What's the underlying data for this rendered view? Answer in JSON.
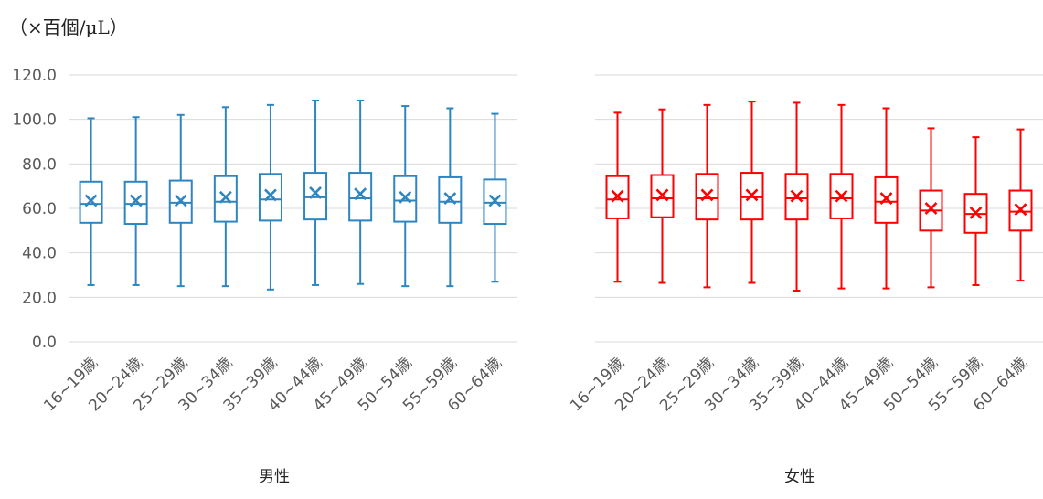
{
  "unit_label": "（×百個/μL）",
  "chart_data": [
    {
      "type": "box",
      "title": "男性",
      "color": "#2E86C1",
      "ylim": [
        0,
        120
      ],
      "yticks": [
        "0.0",
        "20.0",
        "40.0",
        "60.0",
        "80.0",
        "100.0",
        "120.0"
      ],
      "show_yaxis_labels": true,
      "categories": [
        "16~19歳",
        "20~24歳",
        "25~29歳",
        "30~34歳",
        "35~39歳",
        "40~44歳",
        "45~49歳",
        "50~54歳",
        "55~59歳",
        "60~64歳"
      ],
      "boxes": [
        {
          "min": 25.5,
          "q1": 53.5,
          "median": 62.0,
          "mean": 63.5,
          "q3": 72.0,
          "max": 100.5
        },
        {
          "min": 25.5,
          "q1": 53.0,
          "median": 62.0,
          "mean": 63.5,
          "q3": 72.0,
          "max": 101.0
        },
        {
          "min": 25.0,
          "q1": 53.5,
          "median": 62.5,
          "mean": 63.5,
          "q3": 72.5,
          "max": 102.0
        },
        {
          "min": 25.0,
          "q1": 54.0,
          "median": 63.0,
          "mean": 65.0,
          "q3": 74.5,
          "max": 105.5
        },
        {
          "min": 23.5,
          "q1": 54.5,
          "median": 64.0,
          "mean": 66.0,
          "q3": 75.5,
          "max": 106.5
        },
        {
          "min": 25.5,
          "q1": 55.0,
          "median": 65.0,
          "mean": 67.0,
          "q3": 76.0,
          "max": 108.5
        },
        {
          "min": 26.0,
          "q1": 54.5,
          "median": 64.5,
          "mean": 66.5,
          "q3": 76.0,
          "max": 108.5
        },
        {
          "min": 25.0,
          "q1": 54.0,
          "median": 63.5,
          "mean": 65.0,
          "q3": 74.5,
          "max": 106.0
        },
        {
          "min": 25.0,
          "q1": 53.5,
          "median": 63.0,
          "mean": 64.5,
          "q3": 74.0,
          "max": 105.0
        },
        {
          "min": 27.0,
          "q1": 53.0,
          "median": 62.5,
          "mean": 63.5,
          "q3": 73.0,
          "max": 102.5
        }
      ]
    },
    {
      "type": "box",
      "title": "女性",
      "color": "#FF0000",
      "ylim": [
        0,
        120
      ],
      "yticks": [
        "0.0",
        "20.0",
        "40.0",
        "60.0",
        "80.0",
        "100.0",
        "120.0"
      ],
      "show_yaxis_labels": false,
      "categories": [
        "16~19歳",
        "20~24歳",
        "25~29歳",
        "30~34歳",
        "35~39歳",
        "40~44歳",
        "45~49歳",
        "50~54歳",
        "55~59歳",
        "60~64歳"
      ],
      "boxes": [
        {
          "min": 27.0,
          "q1": 55.5,
          "median": 64.0,
          "mean": 65.5,
          "q3": 74.5,
          "max": 103.0
        },
        {
          "min": 26.5,
          "q1": 56.0,
          "median": 64.5,
          "mean": 66.0,
          "q3": 75.0,
          "max": 104.5
        },
        {
          "min": 24.5,
          "q1": 55.0,
          "median": 64.5,
          "mean": 66.0,
          "q3": 75.5,
          "max": 106.5
        },
        {
          "min": 26.5,
          "q1": 55.0,
          "median": 65.0,
          "mean": 66.0,
          "q3": 76.0,
          "max": 108.0
        },
        {
          "min": 23.0,
          "q1": 55.0,
          "median": 64.5,
          "mean": 65.5,
          "q3": 75.5,
          "max": 107.5
        },
        {
          "min": 24.0,
          "q1": 55.5,
          "median": 64.5,
          "mean": 65.5,
          "q3": 75.5,
          "max": 106.5
        },
        {
          "min": 24.0,
          "q1": 53.5,
          "median": 63.0,
          "mean": 64.5,
          "q3": 74.0,
          "max": 105.0
        },
        {
          "min": 24.5,
          "q1": 50.0,
          "median": 59.0,
          "mean": 60.0,
          "q3": 68.0,
          "max": 96.0
        },
        {
          "min": 25.5,
          "q1": 49.0,
          "median": 57.5,
          "mean": 58.0,
          "q3": 66.5,
          "max": 92.0
        },
        {
          "min": 27.5,
          "q1": 50.0,
          "median": 58.5,
          "mean": 59.5,
          "q3": 68.0,
          "max": 95.5
        }
      ]
    }
  ]
}
